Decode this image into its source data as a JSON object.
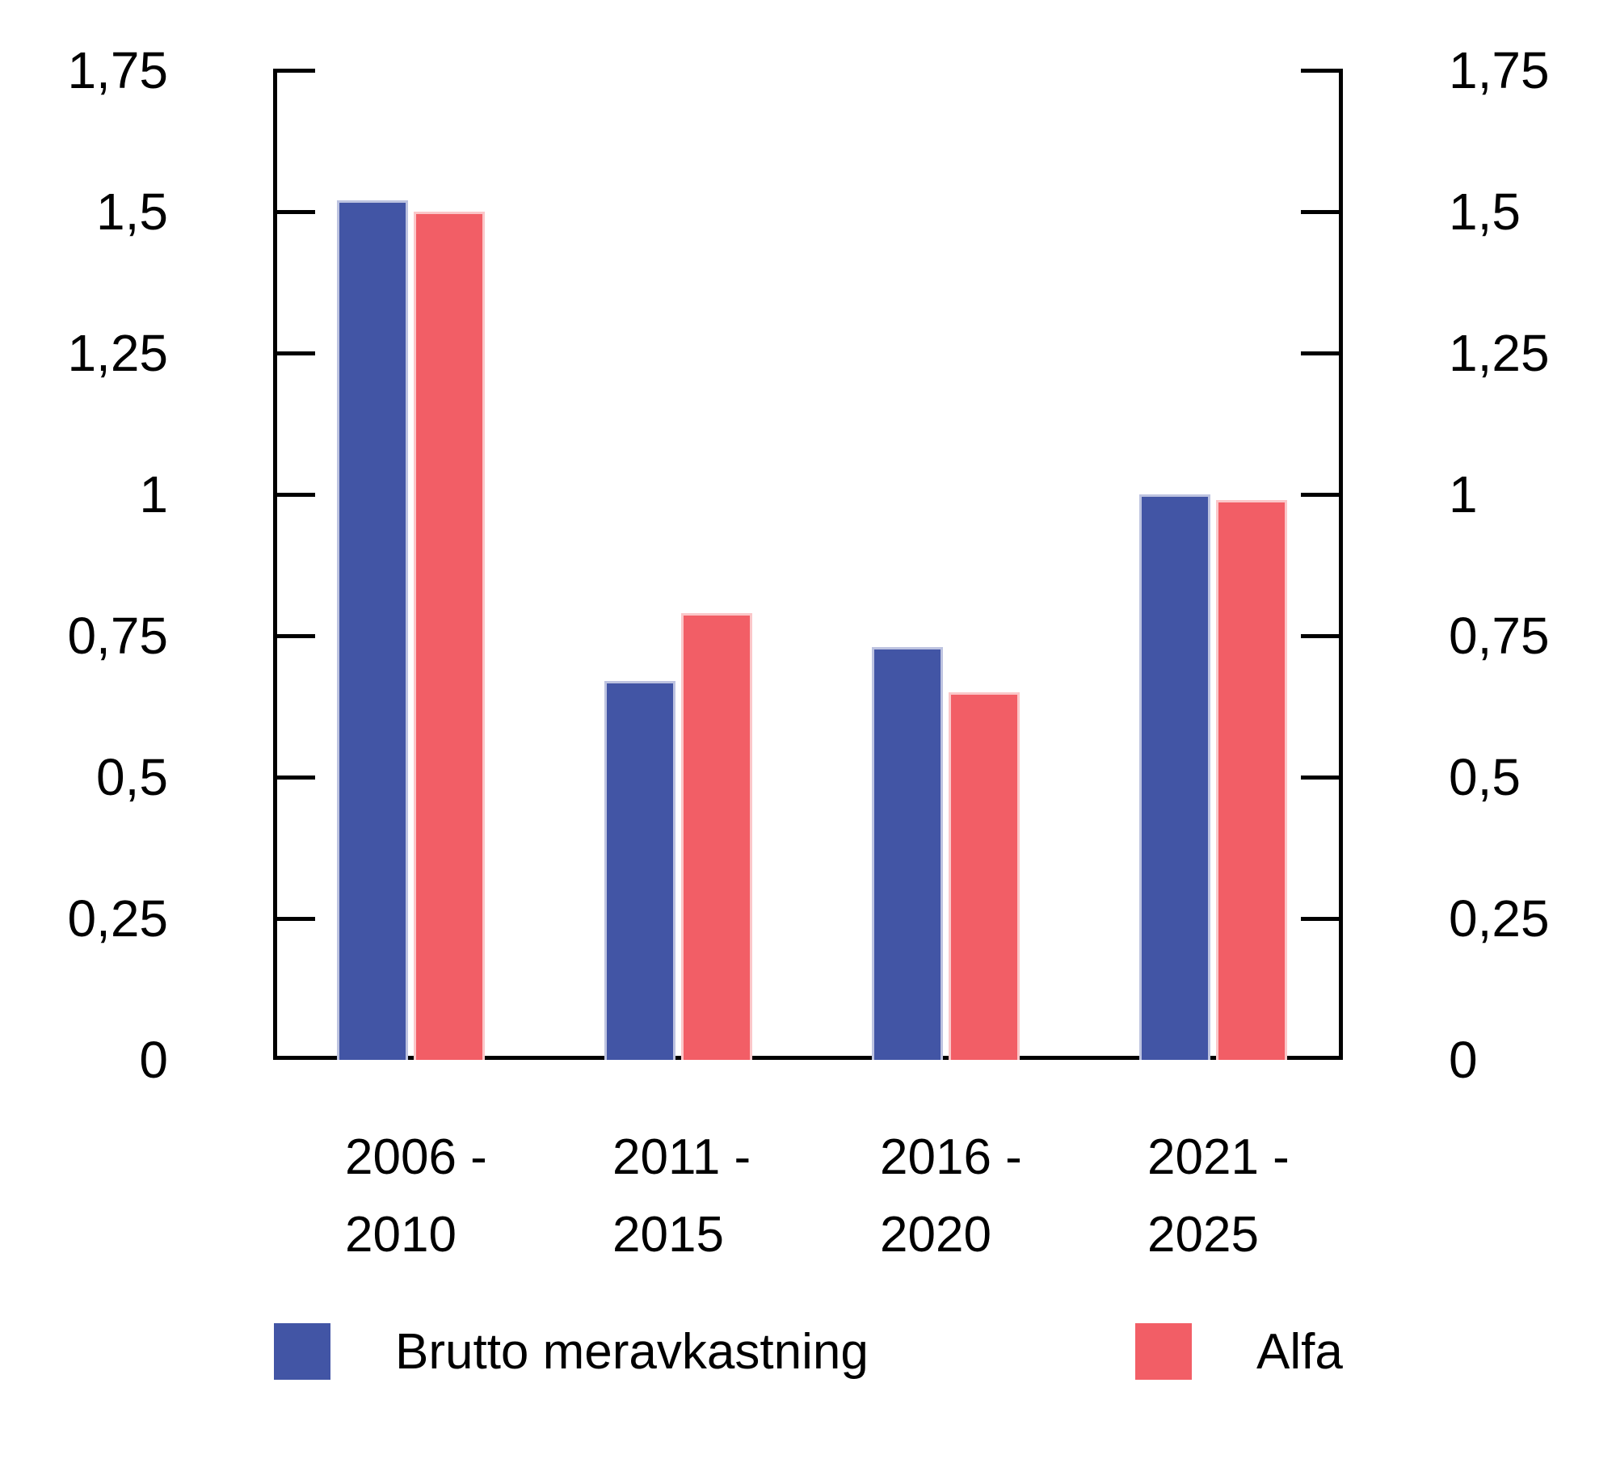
{
  "chart_data": {
    "type": "bar",
    "title": "",
    "xlabel": "",
    "ylabel": "",
    "categories": [
      "2006 - 2010",
      "2011 - 2015",
      "2016 - 2020",
      "2021 - 2025"
    ],
    "category_lines": [
      [
        "2006 -",
        "2010"
      ],
      [
        "2011 -",
        "2015"
      ],
      [
        "2016 -",
        "2020"
      ],
      [
        "2021 -",
        "2025"
      ]
    ],
    "series": [
      {
        "name": "Brutto meravkastning",
        "color": "#4255A5",
        "values": [
          1.52,
          0.67,
          0.73,
          1.0
        ]
      },
      {
        "name": "Alfa",
        "color": "#F25E66",
        "values": [
          1.5,
          0.79,
          0.65,
          0.99
        ]
      }
    ],
    "y_axis": {
      "min": 0,
      "max": 1.75,
      "step": 0.25,
      "tick_labels": [
        "0",
        "0,25",
        "0,5",
        "0,75",
        "1",
        "1,25",
        "1,5",
        "1,75"
      ],
      "sides": [
        "left",
        "right"
      ],
      "decimal_separator": ","
    },
    "grid": false,
    "legend_position": "bottom"
  }
}
